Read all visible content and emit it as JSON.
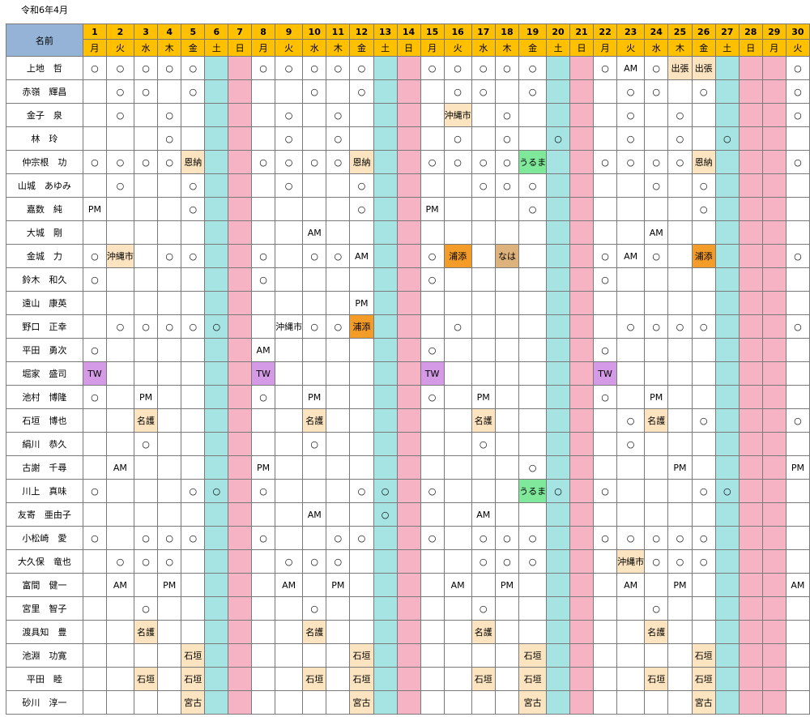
{
  "title": "令和6年4月",
  "header": {
    "name_label": "名前",
    "days": [
      "1",
      "2",
      "3",
      "4",
      "5",
      "6",
      "7",
      "8",
      "9",
      "10",
      "11",
      "12",
      "13",
      "14",
      "15",
      "16",
      "17",
      "18",
      "19",
      "20",
      "21",
      "22",
      "23",
      "24",
      "25",
      "26",
      "27",
      "28",
      "29",
      "30"
    ],
    "weekdays": [
      "月",
      "火",
      "水",
      "木",
      "金",
      "土",
      "日",
      "月",
      "火",
      "水",
      "木",
      "金",
      "土",
      "日",
      "月",
      "火",
      "水",
      "木",
      "金",
      "土",
      "日",
      "月",
      "火",
      "水",
      "木",
      "金",
      "土",
      "日",
      "月",
      "火"
    ]
  },
  "column_types": [
    "w",
    "w",
    "w",
    "w",
    "w",
    "sat",
    "sun",
    "w",
    "w",
    "w",
    "w",
    "w",
    "sat",
    "sun",
    "w",
    "w",
    "w",
    "w",
    "w",
    "sat",
    "sun",
    "w",
    "w",
    "w",
    "w",
    "w",
    "sat",
    "sun",
    "sun",
    "w"
  ],
  "rows": [
    {
      "name": "上地　哲",
      "cells": [
        "○",
        "○",
        "○",
        "○",
        "○",
        "",
        "",
        "○",
        "○",
        "○",
        "○",
        "○",
        "",
        "",
        "○",
        "○",
        "○",
        "○",
        "○",
        "",
        "",
        "○",
        "AM",
        "○",
        "出張",
        "出張",
        "",
        "",
        "",
        "○"
      ],
      "hl": {
        "24": "bg",
        "25": "bg"
      }
    },
    {
      "name": "赤嶺　輝昌",
      "cells": [
        "",
        "○",
        "○",
        "",
        "○",
        "",
        "",
        "",
        "",
        "○",
        "",
        "○",
        "",
        "",
        "",
        "○",
        "○",
        "",
        "○",
        "",
        "",
        "",
        "○",
        "○",
        "",
        "○",
        "",
        "",
        "",
        "○"
      ],
      "hl": {}
    },
    {
      "name": "金子　泉",
      "cells": [
        "",
        "○",
        "",
        "○",
        "",
        "",
        "",
        "",
        "○",
        "",
        "○",
        "",
        "",
        "",
        "",
        "沖縄市",
        "",
        "○",
        "",
        "",
        "",
        "",
        "○",
        "",
        "○",
        "",
        "",
        "",
        "",
        "○"
      ],
      "hl": {
        "15": "bg"
      }
    },
    {
      "name": "林　玲",
      "cells": [
        "",
        "",
        "",
        "○",
        "",
        "",
        "",
        "",
        "○",
        "",
        "○",
        "",
        "",
        "",
        "",
        "○",
        "",
        "○",
        "",
        "○",
        "",
        "",
        "○",
        "",
        "○",
        "",
        "○",
        "",
        "",
        ""
      ],
      "hl": {}
    },
    {
      "name": "仲宗根　功",
      "cells": [
        "○",
        "○",
        "○",
        "○",
        "恩納",
        "",
        "",
        "○",
        "○",
        "○",
        "○",
        "恩納",
        "",
        "",
        "○",
        "○",
        "○",
        "○",
        "うるま",
        "",
        "",
        "○",
        "○",
        "○",
        "○",
        "恩納",
        "",
        "",
        "",
        "○"
      ],
      "hl": {
        "4": "bg",
        "11": "bg",
        "18": "gr",
        "25": "bg"
      }
    },
    {
      "name": "山城　あゆみ",
      "cells": [
        "",
        "○",
        "",
        "",
        "○",
        "",
        "",
        "",
        "○",
        "",
        "",
        "○",
        "",
        "",
        "",
        "",
        "○",
        "○",
        "○",
        "",
        "",
        "",
        "",
        "○",
        "",
        "○",
        "",
        "",
        "",
        ""
      ],
      "hl": {}
    },
    {
      "name": "嘉数　純",
      "cells": [
        "PM",
        "",
        "",
        "",
        "○",
        "",
        "",
        "",
        "",
        "",
        "",
        "○",
        "",
        "",
        "PM",
        "",
        "",
        "",
        "○",
        "",
        "",
        "",
        "",
        "",
        "",
        "○",
        "",
        "",
        "",
        ""
      ],
      "hl": {}
    },
    {
      "name": "大城　剛",
      "cells": [
        "",
        "",
        "",
        "",
        "",
        "",
        "",
        "",
        "",
        "AM",
        "",
        "",
        "",
        "",
        "",
        "",
        "",
        "",
        "",
        "",
        "",
        "",
        "",
        "AM",
        "",
        "",
        "",
        "",
        "",
        ""
      ],
      "hl": {}
    },
    {
      "name": "金城　力",
      "cells": [
        "○",
        "沖縄市",
        "",
        "○",
        "○",
        "",
        "",
        "○",
        "",
        "○",
        "○",
        "AM",
        "",
        "",
        "○",
        "浦添",
        "",
        "なは",
        "",
        "",
        "",
        "○",
        "AM",
        "○",
        "",
        "浦添",
        "",
        "",
        "",
        "○"
      ],
      "hl": {
        "1": "bg",
        "15": "or",
        "17": "na",
        "25": "or"
      }
    },
    {
      "name": "鈴木　和久",
      "cells": [
        "○",
        "",
        "",
        "",
        "",
        "",
        "",
        "○",
        "",
        "",
        "",
        "",
        "",
        "",
        "○",
        "",
        "",
        "",
        "",
        "",
        "",
        "○",
        "",
        "",
        "",
        "",
        "",
        "",
        "",
        ""
      ],
      "hl": {}
    },
    {
      "name": "遠山　康英",
      "cells": [
        "",
        "",
        "",
        "",
        "",
        "",
        "",
        "",
        "",
        "",
        "",
        "PM",
        "",
        "",
        "",
        "",
        "",
        "",
        "",
        "",
        "",
        "",
        "",
        "",
        "",
        "",
        "",
        "",
        "",
        ""
      ],
      "hl": {}
    },
    {
      "name": "野口　正幸",
      "cells": [
        "",
        "○",
        "○",
        "○",
        "○",
        "○",
        "",
        "",
        "沖縄市",
        "○",
        "○",
        "浦添",
        "",
        "",
        "",
        "○",
        "",
        "",
        "",
        "",
        "",
        "",
        "○",
        "○",
        "○",
        "○",
        "",
        "",
        "",
        "○"
      ],
      "hl": {
        "11": "or"
      }
    },
    {
      "name": "平田　勇次",
      "cells": [
        "○",
        "",
        "",
        "",
        "",
        "",
        "",
        "AM",
        "",
        "",
        "",
        "",
        "",
        "",
        "○",
        "",
        "",
        "",
        "",
        "",
        "",
        "○",
        "",
        "",
        "",
        "",
        "",
        "",
        "",
        ""
      ],
      "hl": {}
    },
    {
      "name": "堀家　盛司",
      "cells": [
        "TW",
        "",
        "",
        "",
        "",
        "",
        "",
        "TW",
        "",
        "",
        "",
        "",
        "",
        "",
        "TW",
        "",
        "",
        "",
        "",
        "",
        "",
        "TW",
        "",
        "",
        "",
        "",
        "",
        "",
        "",
        ""
      ],
      "hl": {
        "0": "tw",
        "7": "tw",
        "14": "tw",
        "21": "tw"
      }
    },
    {
      "name": "池村　博隆",
      "cells": [
        "○",
        "",
        "PM",
        "",
        "",
        "",
        "",
        "○",
        "",
        "PM",
        "",
        "",
        "",
        "",
        "○",
        "",
        "PM",
        "",
        "",
        "",
        "",
        "○",
        "",
        "PM",
        "",
        "",
        "",
        "",
        "",
        ""
      ],
      "hl": {}
    },
    {
      "name": "石垣　博也",
      "cells": [
        "",
        "",
        "名護",
        "",
        "",
        "",
        "",
        "",
        "",
        "名護",
        "",
        "",
        "",
        "",
        "",
        "",
        "名護",
        "",
        "",
        "",
        "",
        "",
        "○",
        "名護",
        "",
        "○",
        "",
        "",
        "",
        "○"
      ],
      "hl": {
        "2": "bg",
        "9": "bg",
        "16": "bg",
        "23": "bg"
      }
    },
    {
      "name": "絹川　恭久",
      "cells": [
        "",
        "",
        "○",
        "",
        "",
        "",
        "",
        "",
        "",
        "○",
        "",
        "",
        "",
        "",
        "",
        "",
        "○",
        "",
        "",
        "",
        "",
        "",
        "○",
        "",
        "",
        "",
        "",
        "",
        "",
        ""
      ],
      "hl": {}
    },
    {
      "name": "古謝　千尋",
      "cells": [
        "",
        "AM",
        "",
        "",
        "",
        "",
        "",
        "PM",
        "",
        "",
        "",
        "",
        "",
        "",
        "",
        "",
        "",
        "",
        "○",
        "",
        "",
        "",
        "",
        "",
        "PM",
        "",
        "",
        "",
        "",
        "PM"
      ],
      "hl": {}
    },
    {
      "name": "川上　真味",
      "cells": [
        "○",
        "",
        "",
        "",
        "○",
        "○",
        "",
        "○",
        "",
        "",
        "",
        "○",
        "○",
        "",
        "○",
        "",
        "",
        "",
        "うるま",
        "○",
        "",
        "○",
        "",
        "",
        "",
        "○",
        "○",
        "",
        "",
        ""
      ],
      "hl": {
        "18": "gr"
      }
    },
    {
      "name": "友寄　亜由子",
      "cells": [
        "",
        "",
        "",
        "",
        "",
        "",
        "",
        "",
        "",
        "AM",
        "",
        "",
        "○",
        "",
        "",
        "",
        "AM",
        "",
        "",
        "",
        "",
        "",
        "",
        "",
        "",
        "",
        "",
        "",
        "",
        ""
      ],
      "hl": {}
    },
    {
      "name": "小松崎　愛",
      "cells": [
        "○",
        "",
        "○",
        "○",
        "○",
        "",
        "",
        "○",
        "",
        "",
        "○",
        "○",
        "",
        "",
        "○",
        "",
        "○",
        "○",
        "○",
        "",
        "",
        "○",
        "○",
        "○",
        "○",
        "○",
        "",
        "",
        "",
        ""
      ],
      "hl": {}
    },
    {
      "name": "大久保　竜也",
      "cells": [
        "",
        "○",
        "○",
        "○",
        "",
        "",
        "",
        "",
        "○",
        "○",
        "○",
        "",
        "",
        "",
        "",
        "",
        "○",
        "○",
        "○",
        "",
        "",
        "",
        "沖縄市",
        "○",
        "○",
        "○",
        "",
        "",
        "",
        ""
      ],
      "hl": {
        "22": "bg"
      }
    },
    {
      "name": "富間　健一",
      "cells": [
        "",
        "AM",
        "",
        "PM",
        "",
        "",
        "",
        "",
        "AM",
        "",
        "PM",
        "",
        "",
        "",
        "",
        "AM",
        "",
        "PM",
        "",
        "",
        "",
        "",
        "AM",
        "",
        "PM",
        "",
        "",
        "",
        "",
        "AM"
      ],
      "hl": {}
    },
    {
      "name": "宮里　智子",
      "cells": [
        "",
        "",
        "○",
        "",
        "",
        "",
        "",
        "",
        "",
        "○",
        "",
        "",
        "",
        "",
        "",
        "",
        "○",
        "",
        "",
        "",
        "",
        "",
        "",
        "○",
        "",
        "",
        "",
        "",
        "",
        ""
      ],
      "hl": {}
    },
    {
      "name": "渡具知　豊",
      "cells": [
        "",
        "",
        "名護",
        "",
        "",
        "",
        "",
        "",
        "",
        "名護",
        "",
        "",
        "",
        "",
        "",
        "",
        "名護",
        "",
        "",
        "",
        "",
        "",
        "",
        "名護",
        "",
        "",
        "",
        "",
        "",
        ""
      ],
      "hl": {
        "2": "bg",
        "9": "bg",
        "16": "bg",
        "23": "bg"
      }
    },
    {
      "name": "池淵　功寛",
      "cells": [
        "",
        "",
        "",
        "",
        "石垣",
        "",
        "",
        "",
        "",
        "",
        "",
        "石垣",
        "",
        "",
        "",
        "",
        "",
        "",
        "石垣",
        "",
        "",
        "",
        "",
        "",
        "",
        "石垣",
        "",
        "",
        "",
        ""
      ],
      "hl": {
        "4": "bg",
        "11": "bg",
        "18": "bg",
        "25": "bg"
      }
    },
    {
      "name": "平田　睦",
      "cells": [
        "",
        "",
        "石垣",
        "",
        "石垣",
        "",
        "",
        "",
        "",
        "石垣",
        "",
        "石垣",
        "",
        "",
        "",
        "",
        "石垣",
        "",
        "石垣",
        "",
        "",
        "",
        "",
        "石垣",
        "",
        "石垣",
        "",
        "",
        "",
        ""
      ],
      "hl": {
        "2": "bg",
        "4": "bg",
        "9": "bg",
        "11": "bg",
        "16": "bg",
        "18": "bg",
        "23": "bg",
        "25": "bg"
      }
    },
    {
      "name": "砂川　淳一",
      "cells": [
        "",
        "",
        "",
        "",
        "宮古",
        "",
        "",
        "",
        "",
        "",
        "",
        "宮古",
        "",
        "",
        "",
        "",
        "",
        "",
        "宮古",
        "",
        "",
        "",
        "",
        "",
        "",
        "宮古",
        "",
        "",
        "",
        ""
      ],
      "hl": {
        "4": "bg",
        "11": "bg",
        "18": "bg",
        "25": "bg"
      }
    }
  ]
}
